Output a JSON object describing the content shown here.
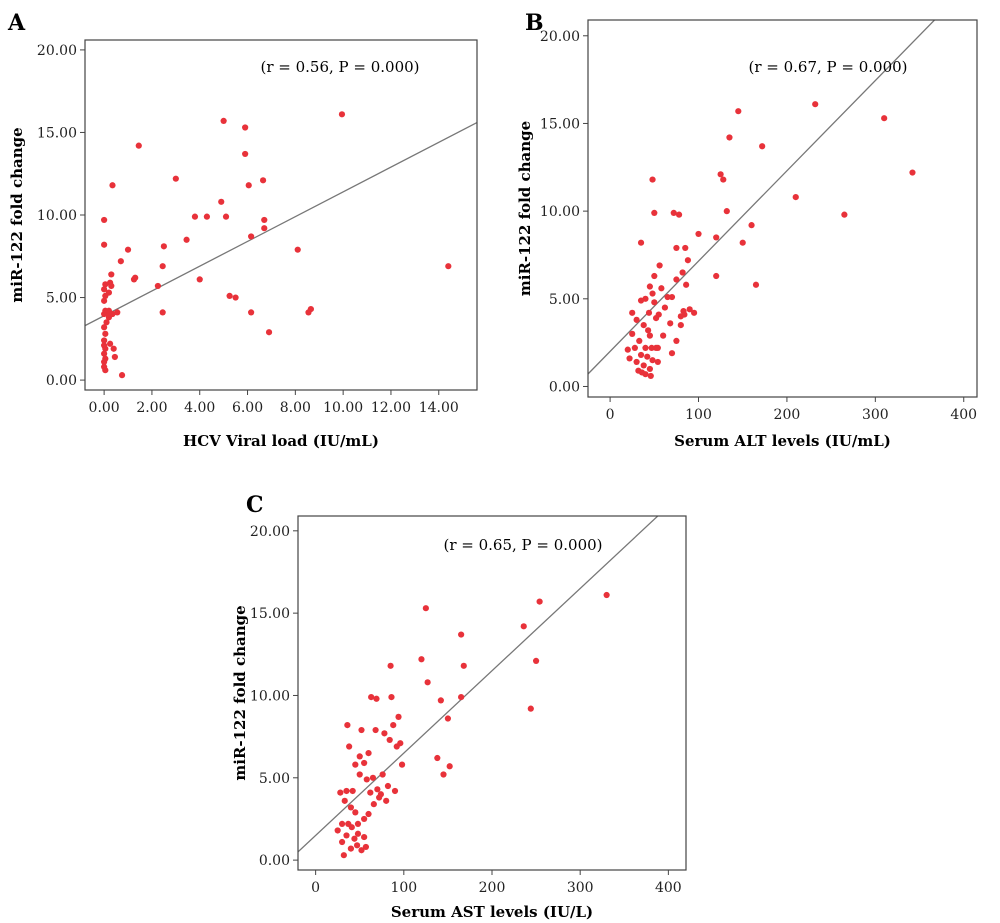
{
  "chart_data": [
    {
      "panel": "A",
      "type": "scatter",
      "xlabel": "HCV Viral load (IU/mL)",
      "ylabel": "miR-122 fold change",
      "annotation": "(r = 0.56, P = 0.000)",
      "xlim": [
        -0.8,
        15.6
      ],
      "ylim": [
        -0.6,
        20.6
      ],
      "xticks": [
        0,
        2,
        4,
        6,
        8,
        10,
        12,
        14
      ],
      "xtick_labels": [
        "0.00",
        "2.00",
        "4.00",
        "6.00",
        "8.00",
        "10.00",
        "12.00",
        "14.00"
      ],
      "yticks": [
        0,
        5,
        10,
        15,
        20
      ],
      "ytick_labels": [
        "0.00",
        "5.00",
        "10.00",
        "15.00",
        "20.00"
      ],
      "fit_line": {
        "intercept": 3.9,
        "slope": 0.75
      },
      "grid": false,
      "points": [
        [
          0.0,
          9.7
        ],
        [
          0.0,
          8.2
        ],
        [
          0.05,
          5.8
        ],
        [
          0.0,
          5.5
        ],
        [
          0.05,
          5.1
        ],
        [
          0.0,
          4.8
        ],
        [
          0.05,
          4.2
        ],
        [
          0.0,
          4.0
        ],
        [
          0.1,
          3.5
        ],
        [
          0.0,
          3.2
        ],
        [
          0.05,
          2.8
        ],
        [
          0.0,
          2.4
        ],
        [
          0.0,
          2.1
        ],
        [
          0.05,
          1.9
        ],
        [
          0.0,
          1.6
        ],
        [
          0.05,
          1.3
        ],
        [
          0.0,
          1.1
        ],
        [
          0.0,
          0.8
        ],
        [
          0.05,
          0.6
        ],
        [
          0.15,
          4.1
        ],
        [
          0.2,
          3.8
        ],
        [
          0.2,
          4.2
        ],
        [
          0.25,
          5.9
        ],
        [
          0.2,
          5.3
        ],
        [
          0.25,
          2.2
        ],
        [
          0.3,
          6.4
        ],
        [
          0.35,
          11.8
        ],
        [
          0.35,
          4.0
        ],
        [
          0.4,
          1.9
        ],
        [
          0.45,
          1.4
        ],
        [
          0.3,
          5.7
        ],
        [
          0.55,
          4.1
        ],
        [
          0.7,
          7.2
        ],
        [
          0.75,
          0.3
        ],
        [
          1.0,
          7.9
        ],
        [
          1.25,
          6.1
        ],
        [
          1.3,
          6.2
        ],
        [
          1.45,
          14.2
        ],
        [
          2.25,
          5.7
        ],
        [
          2.45,
          6.9
        ],
        [
          2.5,
          8.1
        ],
        [
          2.45,
          4.1
        ],
        [
          3.0,
          12.2
        ],
        [
          3.45,
          8.5
        ],
        [
          3.8,
          9.9
        ],
        [
          4.0,
          6.1
        ],
        [
          4.3,
          9.9
        ],
        [
          4.9,
          10.8
        ],
        [
          5.0,
          15.7
        ],
        [
          5.1,
          9.9
        ],
        [
          5.25,
          5.1
        ],
        [
          5.5,
          5.0
        ],
        [
          5.9,
          13.7
        ],
        [
          5.9,
          15.3
        ],
        [
          6.05,
          11.8
        ],
        [
          6.15,
          8.7
        ],
        [
          6.15,
          4.1
        ],
        [
          6.65,
          12.1
        ],
        [
          6.7,
          9.7
        ],
        [
          6.7,
          9.2
        ],
        [
          6.9,
          2.9
        ],
        [
          8.1,
          7.9
        ],
        [
          8.55,
          4.1
        ],
        [
          8.65,
          4.3
        ],
        [
          9.95,
          16.1
        ],
        [
          14.4,
          6.9
        ]
      ]
    },
    {
      "panel": "B",
      "type": "scatter",
      "xlabel": "Serum ALT levels (IU/mL)",
      "ylabel": "miR-122 fold change",
      "annotation": "(r = 0.67, P = 0.000)",
      "xlim": [
        -25,
        415
      ],
      "ylim": [
        -0.6,
        20.9
      ],
      "xticks": [
        0,
        100,
        200,
        300,
        400
      ],
      "xtick_labels": [
        "0",
        "100",
        "200",
        "300",
        "400"
      ],
      "yticks": [
        0,
        5,
        10,
        15,
        20
      ],
      "ytick_labels": [
        "0.00",
        "5.00",
        "10.00",
        "15.00",
        "20.00"
      ],
      "fit_line": {
        "intercept": 2.0,
        "slope": 0.0515
      },
      "grid": false,
      "points": [
        [
          20,
          2.1
        ],
        [
          22,
          1.6
        ],
        [
          25,
          3.0
        ],
        [
          25,
          4.2
        ],
        [
          28,
          2.2
        ],
        [
          30,
          1.4
        ],
        [
          30,
          3.8
        ],
        [
          32,
          0.9
        ],
        [
          33,
          2.6
        ],
        [
          35,
          1.8
        ],
        [
          35,
          4.9
        ],
        [
          35,
          8.2
        ],
        [
          36,
          0.8
        ],
        [
          38,
          1.2
        ],
        [
          38,
          3.5
        ],
        [
          40,
          0.7
        ],
        [
          40,
          2.2
        ],
        [
          40,
          5.0
        ],
        [
          42,
          1.7
        ],
        [
          43,
          3.2
        ],
        [
          44,
          4.2
        ],
        [
          45,
          1.0
        ],
        [
          45,
          2.9
        ],
        [
          45,
          5.7
        ],
        [
          46,
          0.6
        ],
        [
          47,
          2.2
        ],
        [
          48,
          1.5
        ],
        [
          48,
          5.3
        ],
        [
          48,
          11.8
        ],
        [
          50,
          4.8
        ],
        [
          50,
          6.3
        ],
        [
          50,
          9.9
        ],
        [
          52,
          2.2
        ],
        [
          52,
          3.9
        ],
        [
          54,
          1.4
        ],
        [
          54,
          2.2
        ],
        [
          55,
          4.1
        ],
        [
          56,
          6.9
        ],
        [
          58,
          5.6
        ],
        [
          60,
          2.9
        ],
        [
          62,
          4.5
        ],
        [
          65,
          5.1
        ],
        [
          68,
          3.6
        ],
        [
          70,
          1.9
        ],
        [
          70,
          5.1
        ],
        [
          72,
          9.9
        ],
        [
          75,
          7.9
        ],
        [
          75,
          2.6
        ],
        [
          75,
          6.1
        ],
        [
          78,
          9.8
        ],
        [
          80,
          4.0
        ],
        [
          80,
          3.5
        ],
        [
          82,
          6.5
        ],
        [
          83,
          4.3
        ],
        [
          84,
          4.1
        ],
        [
          85,
          7.9
        ],
        [
          86,
          5.8
        ],
        [
          88,
          7.2
        ],
        [
          90,
          4.4
        ],
        [
          95,
          4.2
        ],
        [
          100,
          8.7
        ],
        [
          120,
          6.3
        ],
        [
          120,
          8.5
        ],
        [
          125,
          12.1
        ],
        [
          128,
          11.8
        ],
        [
          132,
          10.0
        ],
        [
          135,
          14.2
        ],
        [
          145,
          15.7
        ],
        [
          150,
          8.2
        ],
        [
          160,
          9.2
        ],
        [
          165,
          5.8
        ],
        [
          172,
          13.7
        ],
        [
          210,
          10.8
        ],
        [
          232,
          16.1
        ],
        [
          265,
          9.8
        ],
        [
          310,
          15.3
        ],
        [
          342,
          12.2
        ]
      ]
    },
    {
      "panel": "C",
      "type": "scatter",
      "xlabel": "Serum AST levels (IU/L)",
      "ylabel": "miR-122 fold change",
      "annotation": "(r = 0.65, P = 0.000)",
      "xlim": [
        -20,
        420
      ],
      "ylim": [
        -0.6,
        20.9
      ],
      "xticks": [
        0,
        100,
        200,
        300,
        400
      ],
      "xtick_labels": [
        "0",
        "100",
        "200",
        "300",
        "400"
      ],
      "yticks": [
        0,
        5,
        10,
        15,
        20
      ],
      "ytick_labels": [
        "0.00",
        "5.00",
        "10.00",
        "15.00",
        "20.00"
      ],
      "fit_line": {
        "intercept": 1.5,
        "slope": 0.05
      },
      "grid": false,
      "points": [
        [
          25,
          1.8
        ],
        [
          28,
          4.1
        ],
        [
          30,
          2.2
        ],
        [
          30,
          1.1
        ],
        [
          32,
          0.3
        ],
        [
          33,
          3.6
        ],
        [
          35,
          1.5
        ],
        [
          35,
          4.2
        ],
        [
          36,
          8.2
        ],
        [
          37,
          2.2
        ],
        [
          38,
          6.9
        ],
        [
          40,
          0.7
        ],
        [
          40,
          3.2
        ],
        [
          41,
          2.0
        ],
        [
          42,
          4.2
        ],
        [
          44,
          1.3
        ],
        [
          45,
          2.9
        ],
        [
          45,
          5.8
        ],
        [
          47,
          0.9
        ],
        [
          48,
          1.6
        ],
        [
          48,
          2.2
        ],
        [
          50,
          5.2
        ],
        [
          50,
          6.3
        ],
        [
          52,
          0.6
        ],
        [
          52,
          7.9
        ],
        [
          55,
          1.4
        ],
        [
          55,
          2.5
        ],
        [
          55,
          5.9
        ],
        [
          57,
          0.8
        ],
        [
          58,
          4.9
        ],
        [
          60,
          2.8
        ],
        [
          60,
          6.5
        ],
        [
          62,
          4.1
        ],
        [
          63,
          9.9
        ],
        [
          65,
          5.0
        ],
        [
          66,
          3.4
        ],
        [
          68,
          7.9
        ],
        [
          69,
          9.8
        ],
        [
          70,
          4.3
        ],
        [
          72,
          3.8
        ],
        [
          74,
          4.0
        ],
        [
          76,
          5.2
        ],
        [
          78,
          7.7
        ],
        [
          80,
          3.6
        ],
        [
          82,
          4.5
        ],
        [
          84,
          7.3
        ],
        [
          85,
          11.8
        ],
        [
          86,
          9.9
        ],
        [
          88,
          8.2
        ],
        [
          90,
          4.2
        ],
        [
          92,
          6.9
        ],
        [
          94,
          8.7
        ],
        [
          96,
          7.1
        ],
        [
          98,
          5.8
        ],
        [
          120,
          12.2
        ],
        [
          125,
          15.3
        ],
        [
          127,
          10.8
        ],
        [
          138,
          6.2
        ],
        [
          142,
          9.7
        ],
        [
          145,
          5.2
        ],
        [
          150,
          8.6
        ],
        [
          152,
          5.7
        ],
        [
          165,
          13.7
        ],
        [
          165,
          9.9
        ],
        [
          168,
          11.8
        ],
        [
          236,
          14.2
        ],
        [
          244,
          9.2
        ],
        [
          250,
          12.1
        ],
        [
          254,
          15.7
        ],
        [
          330,
          16.1
        ]
      ]
    }
  ]
}
